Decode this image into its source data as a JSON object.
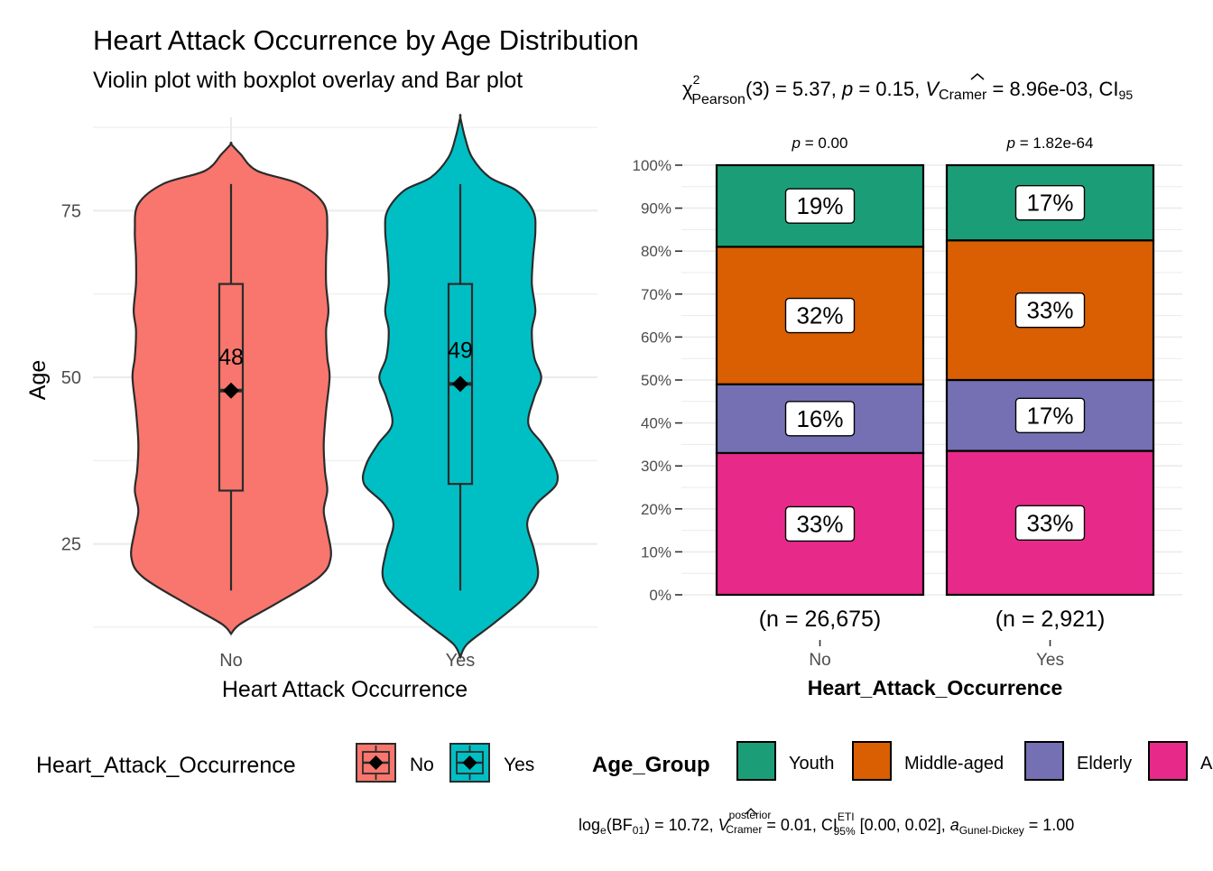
{
  "title": "Heart Attack Occurrence by Age Distribution",
  "subtitle": "Violin plot with boxplot overlay and Bar plot",
  "chart_data": [
    {
      "type": "violin",
      "xlabel": "Heart Attack Occurrence",
      "ylabel": "Age",
      "ylim": [
        11,
        89
      ],
      "yticks": [
        25,
        50,
        75
      ],
      "grid": true,
      "categories": [
        "No",
        "Yes"
      ],
      "colors": [
        "#F8766D",
        "#00BFC4"
      ],
      "groups": [
        {
          "name": "No",
          "min": 18,
          "q1": 33,
          "median": 48,
          "q3": 64,
          "max": 79,
          "mean": 48,
          "mean_label": "48",
          "density": [
            [
              11.5,
              0.0
            ],
            [
              13,
              0.08
            ],
            [
              16,
              0.38
            ],
            [
              20,
              0.75
            ],
            [
              23,
              0.85
            ],
            [
              27,
              0.82
            ],
            [
              30,
              0.79
            ],
            [
              33,
              0.82
            ],
            [
              36,
              0.8
            ],
            [
              40,
              0.79
            ],
            [
              45,
              0.81
            ],
            [
              50,
              0.84
            ],
            [
              53,
              0.82
            ],
            [
              57,
              0.81
            ],
            [
              60,
              0.83
            ],
            [
              64,
              0.81
            ],
            [
              68,
              0.81
            ],
            [
              72,
              0.82
            ],
            [
              76,
              0.79
            ],
            [
              79,
              0.58
            ],
            [
              81,
              0.22
            ],
            [
              83.5,
              0.08
            ],
            [
              85,
              0.0
            ]
          ]
        },
        {
          "name": "Yes",
          "min": 18,
          "q1": 34,
          "median": 49,
          "q3": 64,
          "max": 79,
          "mean": 49,
          "mean_label": "49",
          "density": [
            [
              8,
              0.0
            ],
            [
              10,
              0.06
            ],
            [
              13,
              0.28
            ],
            [
              17,
              0.55
            ],
            [
              20,
              0.66
            ],
            [
              24,
              0.63
            ],
            [
              28,
              0.57
            ],
            [
              31,
              0.65
            ],
            [
              34,
              0.82
            ],
            [
              37,
              0.8
            ],
            [
              40,
              0.7
            ],
            [
              43,
              0.58
            ],
            [
              47,
              0.63
            ],
            [
              50,
              0.69
            ],
            [
              53,
              0.63
            ],
            [
              57,
              0.61
            ],
            [
              60,
              0.64
            ],
            [
              64,
              0.61
            ],
            [
              68,
              0.62
            ],
            [
              72,
              0.64
            ],
            [
              75,
              0.62
            ],
            [
              78,
              0.48
            ],
            [
              80,
              0.25
            ],
            [
              83,
              0.1
            ],
            [
              86,
              0.04
            ],
            [
              89,
              0.0
            ]
          ]
        }
      ]
    },
    {
      "type": "bar",
      "stacked": true,
      "xlabel": "Heart_Attack_Occurrence",
      "ylabel": "",
      "ylim": [
        0,
        100
      ],
      "yticks": [
        0,
        10,
        20,
        30,
        40,
        50,
        60,
        70,
        80,
        90,
        100
      ],
      "ytick_labels": [
        "0%",
        "10%",
        "20%",
        "30%",
        "40%",
        "50%",
        "60%",
        "70%",
        "80%",
        "90%",
        "100%"
      ],
      "grid": true,
      "stats_header_parts": [
        "χ",
        "2",
        "Pearson",
        "(3) = 5.37, ",
        "p",
        " = 0.15, ",
        "V",
        "Cramer",
        " = 8.96e-03, CI",
        "95"
      ],
      "categories": [
        "No",
        "Yes"
      ],
      "top_labels": [
        "p = 0.00",
        "p = 1.82e-64"
      ],
      "n_labels": [
        "(n = 26,675)",
        "(n = 2,921)"
      ],
      "series_order_bottom_to_top": [
        "Adult",
        "Elderly",
        "Middle-aged",
        "Youth"
      ],
      "series": [
        {
          "name": "Adult",
          "color": "#E7298A",
          "values": [
            33,
            33.5
          ],
          "labels": [
            "33%",
            "33%"
          ]
        },
        {
          "name": "Elderly",
          "color": "#7570B3",
          "values": [
            16,
            16.5
          ],
          "labels": [
            "16%",
            "17%"
          ]
        },
        {
          "name": "Middle-aged",
          "color": "#D95F02",
          "values": [
            32,
            32.5
          ],
          "labels": [
            "32%",
            "33%"
          ]
        },
        {
          "name": "Youth",
          "color": "#1B9E77",
          "values": [
            19,
            17.5
          ],
          "labels": [
            "19%",
            "17%"
          ]
        }
      ]
    }
  ],
  "legend_left": {
    "title": "Heart_Attack_Occurrence",
    "items": [
      {
        "label": "No",
        "color": "#F8766D"
      },
      {
        "label": "Yes",
        "color": "#00BFC4"
      }
    ]
  },
  "legend_right": {
    "title": "Age_Group",
    "items": [
      {
        "label": "Youth",
        "color": "#1B9E77"
      },
      {
        "label": "Middle-aged",
        "color": "#D95F02"
      },
      {
        "label": "Elderly",
        "color": "#7570B3"
      },
      {
        "label": "A",
        "color": "#E7298A"
      }
    ]
  },
  "caption_parts": [
    "log",
    "e",
    "(BF",
    "01",
    ") = 10.72, ",
    "V",
    "posterior",
    "Cramer",
    " = 0.01, CI",
    "ETI",
    "95%",
    " [0.00, 0.02], ",
    "a",
    "Gunel-Dickey",
    " = 1.00"
  ]
}
